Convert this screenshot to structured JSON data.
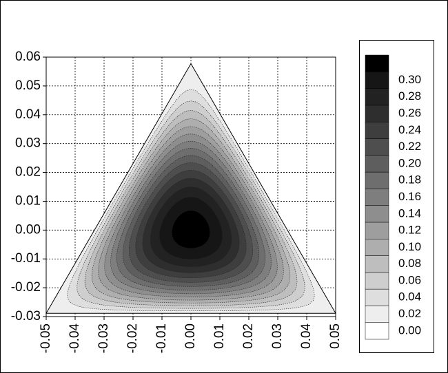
{
  "chart_data": {
    "type": "contour",
    "xlim": [
      -0.05,
      0.05
    ],
    "xticks": [
      {
        "value": -0.05,
        "label": "-0.05"
      },
      {
        "value": -0.04,
        "label": "-0.04"
      },
      {
        "value": -0.03,
        "label": "-0.03"
      },
      {
        "value": -0.02,
        "label": "-0.02"
      },
      {
        "value": -0.01,
        "label": "-0.01"
      },
      {
        "value": 0,
        "label": "0.00"
      },
      {
        "value": 0.01,
        "label": "0.01"
      },
      {
        "value": 0.02,
        "label": "0.02"
      },
      {
        "value": 0.03,
        "label": "0.03"
      },
      {
        "value": 0.04,
        "label": "0.04"
      },
      {
        "value": 0.05,
        "label": "0.05"
      }
    ],
    "ylim": [
      -0.03,
      0.06
    ],
    "yticks": [
      {
        "value": -0.03,
        "label": "-0.03"
      },
      {
        "value": -0.02,
        "label": "-0.02"
      },
      {
        "value": -0.01,
        "label": "-0.01"
      },
      {
        "value": 0,
        "label": "0.00"
      },
      {
        "value": 0.01,
        "label": "0.01"
      },
      {
        "value": 0.02,
        "label": "0.02"
      },
      {
        "value": 0.03,
        "label": "0.03"
      },
      {
        "value": 0.04,
        "label": "0.04"
      },
      {
        "value": 0.05,
        "label": "0.05"
      },
      {
        "value": 0.06,
        "label": "0.06"
      }
    ],
    "grid": true,
    "levels": [
      {
        "value": 0,
        "label": "0.00"
      },
      {
        "value": 0.02,
        "label": "0.02"
      },
      {
        "value": 0.04,
        "label": "0.04"
      },
      {
        "value": 0.06,
        "label": "0.06"
      },
      {
        "value": 0.08,
        "label": "0.08"
      },
      {
        "value": 0.1,
        "label": "0.10"
      },
      {
        "value": 0.12,
        "label": "0.12"
      },
      {
        "value": 0.14,
        "label": "0.14"
      },
      {
        "value": 0.16,
        "label": "0.16"
      },
      {
        "value": 0.18,
        "label": "0.18"
      },
      {
        "value": 0.2,
        "label": "0.20"
      },
      {
        "value": 0.22,
        "label": "0.22"
      },
      {
        "value": 0.24,
        "label": "0.24"
      },
      {
        "value": 0.26,
        "label": "0.26"
      },
      {
        "value": 0.28,
        "label": "0.28"
      },
      {
        "value": 0.3,
        "label": "0.30"
      }
    ],
    "colors": [
      "#ffffff",
      "#eeeeee",
      "#dedede",
      "#cecece",
      "#bebebe",
      "#aeaeae",
      "#9e9e9e",
      "#8e8e8e",
      "#7e7e7e",
      "#6e6e6e",
      "#5e5e5e",
      "#4e4e4e",
      "#3e3e3e",
      "#2e2e2e",
      "#222222",
      "#161616",
      "#000000"
    ]
  }
}
